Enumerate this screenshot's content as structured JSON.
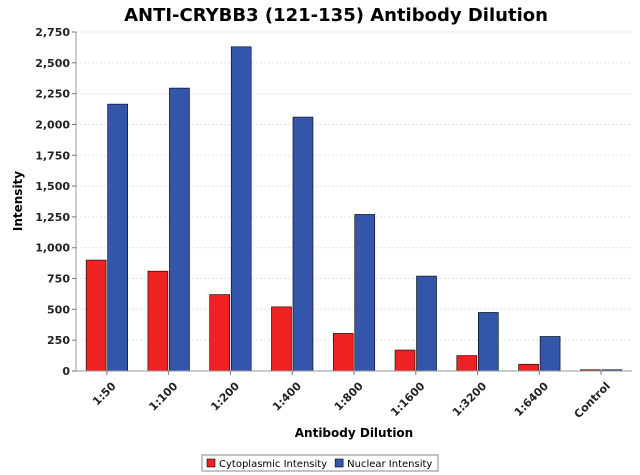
{
  "chart_data": {
    "type": "bar",
    "title": "ANTI-CRYBB3 (121-135) Antibody Dilution",
    "xlabel": "Antibody Dilution",
    "ylabel": "Intensity",
    "ylim": [
      0,
      2750
    ],
    "yticks": [
      0,
      250,
      500,
      750,
      1000,
      1250,
      1500,
      1750,
      2000,
      2250,
      2500,
      2750
    ],
    "ytick_labels": [
      "0",
      "250",
      "500",
      "750",
      "1,000",
      "1,250",
      "1,500",
      "1,750",
      "2,000",
      "2,250",
      "2,500",
      "2,750"
    ],
    "categories": [
      "1:50",
      "1:100",
      "1:200",
      "1:400",
      "1:800",
      "1:1600",
      "1:3200",
      "1:6400",
      "Control"
    ],
    "series": [
      {
        "name": "Cytoplasmic Intensity",
        "color": "#ee2222",
        "values": [
          900,
          810,
          620,
          520,
          305,
          170,
          125,
          55,
          10
        ]
      },
      {
        "name": "Nuclear Intensity",
        "color": "#3355aa",
        "values": [
          2165,
          2295,
          2630,
          2060,
          1270,
          770,
          475,
          280,
          10
        ]
      }
    ],
    "grid": true,
    "legend": "bottom-center"
  }
}
